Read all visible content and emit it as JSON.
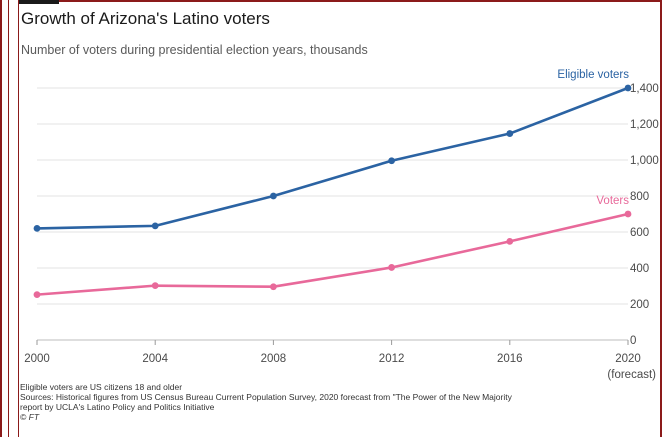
{
  "title": "Growth of Arizona's Latino voters",
  "subtitle": "Number of voters during presidential election years, thousands",
  "colors": {
    "eligible": "#2b63a3",
    "voters": "#e8699a",
    "grid": "#e3e3e3",
    "frame": "#8b1a1a"
  },
  "chart_data": {
    "type": "line",
    "title": "Growth of Arizona's Latino voters",
    "subtitle": "Number of voters during presidential election years, thousands",
    "x": [
      2000,
      2004,
      2008,
      2012,
      2016,
      2020
    ],
    "x_tick_labels": [
      "2000",
      "2004",
      "2008",
      "2012",
      "2016",
      "2020"
    ],
    "x_tick_sublabel": "(forecast)",
    "y_ticks": [
      "1,400",
      "1,200",
      "1,000",
      "800",
      "600",
      "400",
      "200",
      "0"
    ],
    "ylim": [
      0,
      1400
    ],
    "grid": true,
    "series": [
      {
        "name": "Eligible voters",
        "values": [
          620,
          634,
          800,
          996,
          1147,
          1400
        ]
      },
      {
        "name": "Voters",
        "values": [
          252,
          302,
          296,
          403,
          548,
          700
        ]
      }
    ]
  },
  "footnotes": {
    "note": "Eligible voters are US citizens 18 and older",
    "sources_line1": "Sources: Historical figures from US Census Bureau Current Population Survey, 2020 forecast from \"The Power of the New Majority",
    "sources_line2": "report by UCLA's Latino Policy and Politics Initiative",
    "credit": "© FT"
  }
}
